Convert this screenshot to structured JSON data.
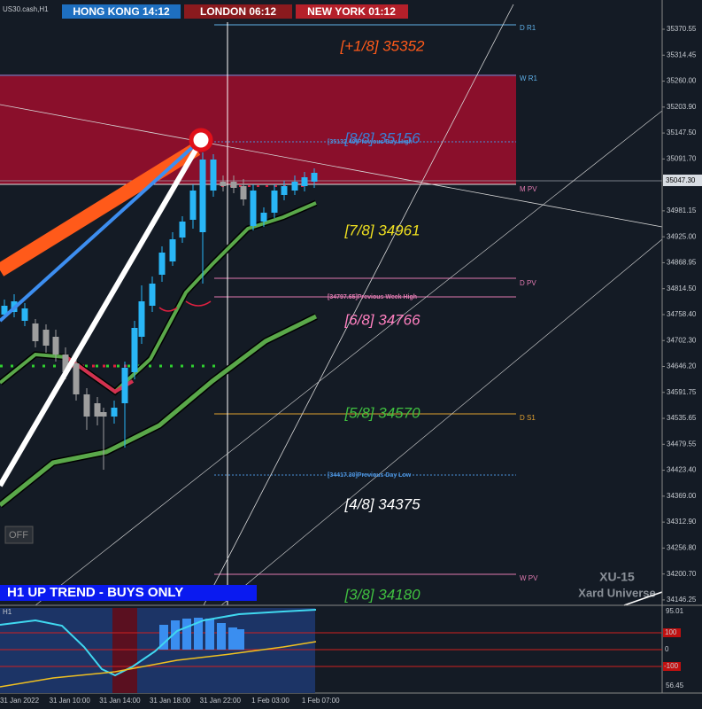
{
  "header": {
    "symbol": "US30.cash,H1",
    "sessions": [
      "HONG KONG 14:12",
      "LONDON 06:12",
      "NEW YORK 01:12"
    ]
  },
  "price_axis": {
    "labels": [
      "35370.55",
      "35314.45",
      "35260.00",
      "35203.90",
      "35147.50",
      "35091.70",
      "34981.15",
      "34925.00",
      "34868.95",
      "34814.50",
      "34758.40",
      "34702.30",
      "34646.20",
      "34591.75",
      "34535.65",
      "34479.55",
      "34423.40",
      "34369.00",
      "34312.90",
      "34256.80",
      "34200.70",
      "34146.25"
    ],
    "current": "35047.30"
  },
  "murrey": [
    "[+1/8] 35352",
    "[8/8] 35156",
    "[7/8] 34961",
    "[6/8] 34766",
    "[5/8] 34570",
    "[4/8] 34375",
    "[3/8] 34180"
  ],
  "levels": [
    "D R1",
    "W R1",
    "M PV",
    "D PV",
    "D S1",
    "W PV"
  ],
  "line_labels": [
    "[35132.40]Previous Day High",
    "[34797.65]Previous Week High",
    "[34417.30]Previous Day Low"
  ],
  "button": "OFF",
  "trend_banner": "H1 UP TREND - BUYS ONLY",
  "brand": {
    "code": "XU-15",
    "name": "Xard Universe"
  },
  "subwindow": {
    "label": "H1",
    "scale": [
      "95.01",
      "100",
      "0",
      "-100",
      "56.45"
    ]
  },
  "time_axis": [
    "31 Jan 2022",
    "31 Jan 10:00",
    "31 Jan 14:00",
    "31 Jan 18:00",
    "31 Jan 22:00",
    "1 Feb 03:00",
    "1 Feb 07:00"
  ]
}
